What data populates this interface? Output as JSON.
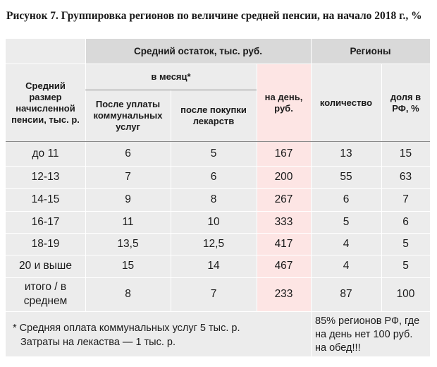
{
  "title": "Рисунок 7. Группировка регионов по величине средней пенсии, на начало 2018 г., %",
  "header": {
    "group_balance": "Средний остаток, тыс. руб.",
    "group_regions": "Регионы",
    "col_size": "Средний размер начисленной пенсии, тыс. р.",
    "per_month": "в месяц*",
    "after_utilities": "После уплаты коммунальных услуг",
    "after_medicine": "после покупки лекарств",
    "per_day": "на день, руб.",
    "count": "количество",
    "share": "доля в РФ, %"
  },
  "rows": [
    {
      "label": "до 11",
      "after_utilities": "6",
      "after_medicine": "5",
      "per_day": "167",
      "count": "13",
      "share": "15"
    },
    {
      "label": "12-13",
      "after_utilities": "7",
      "after_medicine": "6",
      "per_day": "200",
      "count": "55",
      "share": "63"
    },
    {
      "label": "14-15",
      "after_utilities": "9",
      "after_medicine": "8",
      "per_day": "267",
      "count": "6",
      "share": "7"
    },
    {
      "label": "16-17",
      "after_utilities": "11",
      "after_medicine": "10",
      "per_day": "333",
      "count": "5",
      "share": "6"
    },
    {
      "label": "18-19",
      "after_utilities": "13,5",
      "after_medicine": "12,5",
      "per_day": "417",
      "count": "4",
      "share": "5"
    },
    {
      "label": "20 и выше",
      "after_utilities": "15",
      "after_medicine": "14",
      "per_day": "467",
      "count": "4",
      "share": "5"
    },
    {
      "label": "итого / в среднем",
      "after_utilities": "8",
      "after_medicine": "7",
      "per_day": "233",
      "count": "87",
      "share": "100"
    }
  ],
  "footnote": {
    "line1": "* Средняя оплата коммунальных услуг 5 тыс. р.",
    "line2": "Затраты на лекаства — 1 тыс. р."
  },
  "callout": "85% регионов РФ, где на день нет 100 руб. на обед!!!",
  "colors": {
    "header_bg": "#d9d9d9",
    "body_bg": "#ececec",
    "highlight_col": "#fde5e4"
  }
}
